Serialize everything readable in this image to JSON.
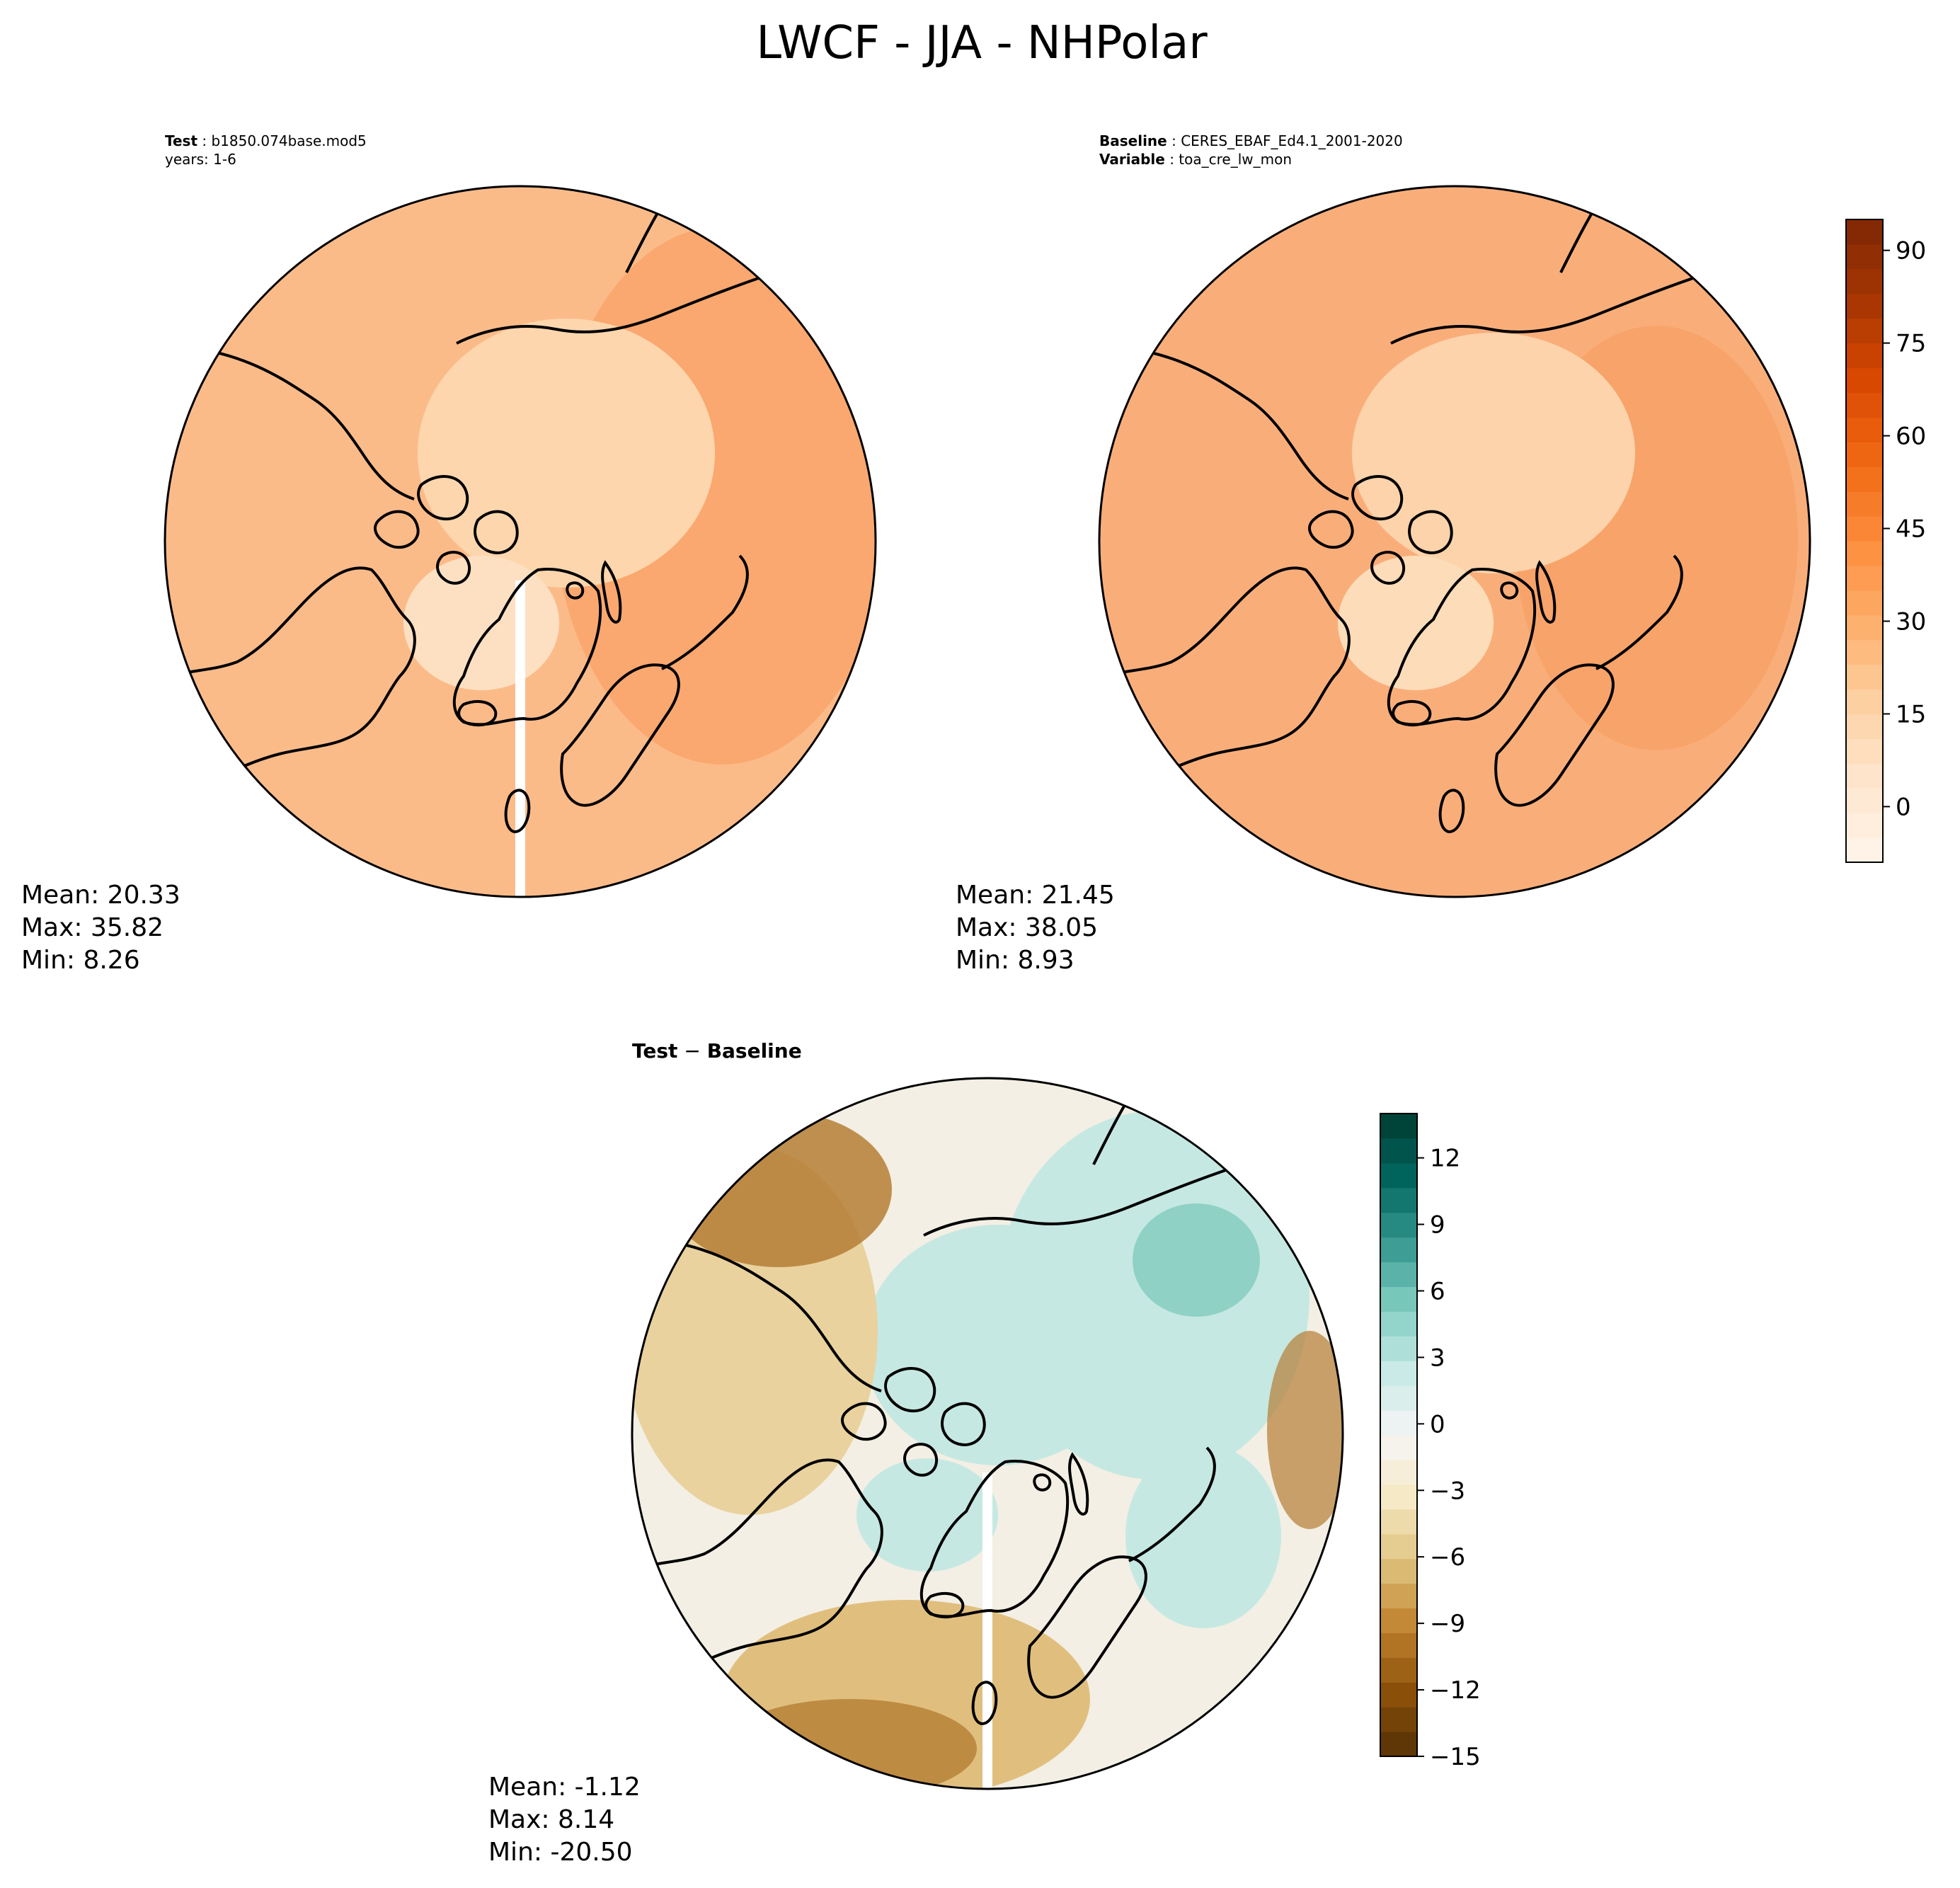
{
  "title": "LWCF - JJA - NHPolar",
  "panels": {
    "test": {
      "header_lines": [
        {
          "bold": "Test",
          "text": " : b1850.074base.mod5"
        },
        {
          "bold": "",
          "text": "years: 1-6"
        }
      ],
      "stats": {
        "mean": "Mean: 20.33",
        "max": "Max: 35.82",
        "min": "Min:  8.26"
      }
    },
    "baseline": {
      "header_lines": [
        {
          "bold": "Baseline",
          "text": " : CERES_EBAF_Ed4.1_2001-2020"
        },
        {
          "bold": "Variable",
          "text": " : toa_cre_lw_mon"
        }
      ],
      "stats": {
        "mean": "Mean: 21.45",
        "max": "Max: 38.05",
        "min": "Min:  8.93"
      }
    },
    "diff": {
      "header": {
        "bold_left": "Test",
        "sep": " − ",
        "bold_right": "Baseline"
      },
      "stats": {
        "mean": "Mean: -1.12",
        "max": "Max:  8.14",
        "min": "Min: -20.50"
      }
    }
  },
  "colorbars": {
    "main": {
      "ticks": [
        "90",
        "75",
        "60",
        "45",
        "30",
        "15",
        "0"
      ],
      "tick_values": [
        90,
        75,
        60,
        45,
        30,
        15,
        0
      ],
      "range": [
        -9,
        95
      ],
      "palette": "Oranges",
      "colors": [
        "#fff5eb",
        "#fee6ce",
        "#fdd0a2",
        "#fdae6b",
        "#fd8d3c",
        "#f16913",
        "#d94801",
        "#a63603",
        "#7f2704"
      ]
    },
    "diff": {
      "ticks": [
        "12",
        "9",
        "6",
        "3",
        "0",
        "−3",
        "−6",
        "−9",
        "−12",
        "−15"
      ],
      "tick_values": [
        12,
        9,
        6,
        3,
        0,
        -3,
        -6,
        -9,
        -12,
        -15
      ],
      "range": [
        -15,
        14
      ],
      "palette": "BrBG",
      "colors": [
        "#543005",
        "#8c510a",
        "#bf812d",
        "#dfc27d",
        "#f6e8c3",
        "#f5f5f5",
        "#c7eae5",
        "#80cdc1",
        "#35978f",
        "#01665e",
        "#003c30"
      ]
    }
  },
  "map_colors": {
    "coastline": "#000000",
    "test_ocean": "#fbbb89",
    "test_arctic": "#fdd6ad",
    "test_greenland": "#fde0c2",
    "test_east": "#f9a56b",
    "base_ocean": "#f9ae7a",
    "base_arctic": "#fcd3aa",
    "base_greenland": "#fddcb9",
    "diff_teal": "#c6e8e2",
    "diff_teal_strong": "#8fd1c5",
    "diff_tan": "#e9d29e",
    "diff_brown": "#b57e35",
    "diff_neutral": "#f3efe4"
  }
}
